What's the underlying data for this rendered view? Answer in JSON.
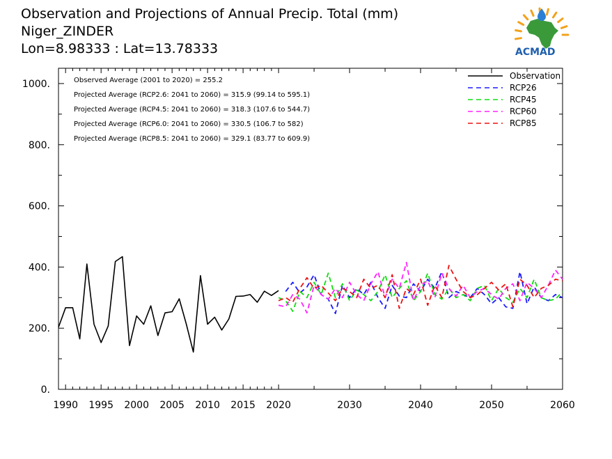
{
  "header": {
    "title_lines": [
      "Observation and Projections of Annual Precip. Total (mm)",
      "Niger_ZINDER",
      "Lon=8.98333 : Lat=13.78333"
    ]
  },
  "logo": {
    "text": "ACMAD",
    "colors": {
      "africa": "#3a9a3a",
      "drop": "#2a7fd4",
      "rays": "#f2a21b",
      "text": "#1f5fae"
    }
  },
  "annotations": [
    "Observed Average (2001 to 2020) = 255.2",
    "Projected Average (RCP2.6: 2041 to 2060) = 315.9 (99.14 to 595.1)",
    "Projected Average (RCP4.5: 2041 to 2060) = 318.3 (107.6 to 544.7)",
    "Projected Average (RCP6.0: 2041 to 2060) = 330.5 (106.7 to 582)",
    "Projected Average (RCP8.5: 2041 to 2060) = 329.1 (83.77 to 609.9)"
  ],
  "chart_data": {
    "type": "line",
    "title": "Observation and Projections of Annual Precip. Total (mm)",
    "xlim": [
      1989,
      2060
    ],
    "ylim": [
      0,
      1050
    ],
    "x_ticks": [
      {
        "value": 1990,
        "label": "1990"
      },
      {
        "value": 1995,
        "label": "1995"
      },
      {
        "value": 2000,
        "label": "2000"
      },
      {
        "value": 2005,
        "label": "2005"
      },
      {
        "value": 2010,
        "label": "2010"
      },
      {
        "value": 2015,
        "label": "2015"
      },
      {
        "value": 2020,
        "label": "2020"
      },
      {
        "value": 2030,
        "label": "2030"
      },
      {
        "value": 2040,
        "label": "2040"
      },
      {
        "value": 2050,
        "label": "2050"
      },
      {
        "value": 2060,
        "label": "2060"
      }
    ],
    "y_ticks": [
      {
        "value": 0,
        "label": "0."
      },
      {
        "value": 200,
        "label": "200."
      },
      {
        "value": 400,
        "label": "400."
      },
      {
        "value": 600,
        "label": "600."
      },
      {
        "value": 800,
        "label": "800."
      },
      {
        "value": 1000,
        "label": "1000."
      }
    ],
    "legend_position": "top-right",
    "series": [
      {
        "name": "Observation",
        "color": "#000000",
        "dash": "solid",
        "x": [
          1989,
          1990,
          1991,
          1992,
          1993,
          1994,
          1995,
          1996,
          1997,
          1998,
          1999,
          2000,
          2001,
          2002,
          2003,
          2004,
          2005,
          2006,
          2007,
          2008,
          2009,
          2010,
          2011,
          2012,
          2013,
          2014,
          2015,
          2016,
          2017,
          2018,
          2019,
          2020
        ],
        "y": [
          203,
          267,
          267,
          165,
          410,
          213,
          153,
          207,
          418,
          434,
          143,
          240,
          213,
          273,
          176,
          250,
          254,
          296,
          214,
          122,
          372,
          213,
          236,
          194,
          230,
          304,
          305,
          310,
          285,
          321,
          307,
          323
        ]
      },
      {
        "name": "RCP26",
        "color": "#1a1aff",
        "dash": "dashed",
        "x": [
          2021,
          2022,
          2023,
          2024,
          2025,
          2026,
          2027,
          2028,
          2029,
          2030,
          2031,
          2032,
          2033,
          2034,
          2035,
          2036,
          2037,
          2038,
          2039,
          2040,
          2041,
          2042,
          2043,
          2044,
          2045,
          2046,
          2047,
          2048,
          2049,
          2050,
          2051,
          2052,
          2053,
          2054,
          2055,
          2056,
          2057,
          2058,
          2059,
          2060
        ],
        "y": [
          320,
          350,
          315,
          335,
          375,
          310,
          295,
          248,
          340,
          300,
          330,
          310,
          350,
          300,
          265,
          340,
          305,
          300,
          345,
          320,
          360,
          330,
          385,
          300,
          320,
          310,
          300,
          330,
          310,
          280,
          300,
          270,
          265,
          385,
          280,
          335,
          300,
          290,
          310,
          300
        ]
      },
      {
        "name": "RCP45",
        "color": "#11dd11",
        "dash": "dashed",
        "x": [
          2020,
          2021,
          2022,
          2023,
          2024,
          2025,
          2026,
          2027,
          2028,
          2029,
          2030,
          2031,
          2032,
          2033,
          2034,
          2035,
          2036,
          2037,
          2038,
          2039,
          2040,
          2041,
          2042,
          2043,
          2044,
          2045,
          2046,
          2047,
          2048,
          2049,
          2050,
          2051,
          2052,
          2053,
          2054,
          2055,
          2056,
          2057,
          2058,
          2059,
          2060
        ],
        "y": [
          300,
          290,
          255,
          320,
          300,
          350,
          310,
          380,
          300,
          345,
          290,
          325,
          310,
          290,
          320,
          375,
          300,
          330,
          355,
          290,
          320,
          380,
          310,
          295,
          330,
          300,
          310,
          290,
          330,
          340,
          290,
          330,
          300,
          285,
          330,
          300,
          360,
          300,
          290,
          295,
          320
        ]
      },
      {
        "name": "RCP60",
        "color": "#ff22ff",
        "dash": "dashed",
        "x": [
          2020,
          2021,
          2022,
          2023,
          2024,
          2025,
          2026,
          2027,
          2028,
          2029,
          2030,
          2031,
          2032,
          2033,
          2034,
          2035,
          2036,
          2037,
          2038,
          2039,
          2040,
          2041,
          2042,
          2043,
          2044,
          2045,
          2046,
          2047,
          2048,
          2049,
          2050,
          2051,
          2052,
          2053,
          2054,
          2055,
          2056,
          2057,
          2058,
          2059,
          2060
        ],
        "y": [
          275,
          270,
          310,
          295,
          250,
          340,
          310,
          295,
          330,
          300,
          350,
          310,
          290,
          345,
          385,
          300,
          360,
          330,
          415,
          290,
          340,
          355,
          300,
          380,
          330,
          305,
          340,
          300,
          320,
          330,
          310,
          295,
          330,
          345,
          290,
          350,
          330,
          300,
          340,
          390,
          360
        ]
      },
      {
        "name": "RCP85",
        "color": "#ee1111",
        "dash": "dashed",
        "x": [
          2020,
          2021,
          2022,
          2023,
          2024,
          2025,
          2026,
          2027,
          2028,
          2029,
          2030,
          2031,
          2032,
          2033,
          2034,
          2035,
          2036,
          2037,
          2038,
          2039,
          2040,
          2041,
          2042,
          2043,
          2044,
          2045,
          2046,
          2047,
          2048,
          2049,
          2050,
          2051,
          2052,
          2053,
          2054,
          2055,
          2056,
          2057,
          2058,
          2059,
          2060
        ],
        "y": [
          290,
          300,
          285,
          330,
          365,
          330,
          340,
          315,
          290,
          330,
          320,
          300,
          360,
          330,
          340,
          300,
          375,
          265,
          330,
          310,
          360,
          275,
          340,
          300,
          405,
          360,
          320,
          300,
          310,
          330,
          350,
          325,
          345,
          270,
          360,
          340,
          300,
          330,
          340,
          360,
          355
        ]
      }
    ]
  }
}
